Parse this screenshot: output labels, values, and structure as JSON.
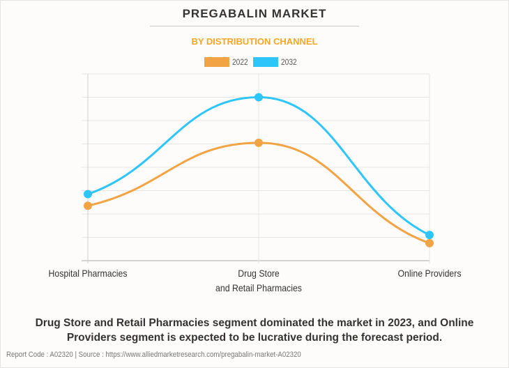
{
  "header": {
    "title": "PREGABALIN MARKET",
    "subtitle": "BY DISTRIBUTION CHANNEL"
  },
  "chart_data": {
    "type": "line",
    "title": "PREGABALIN MARKET",
    "subtitle": "BY DISTRIBUTION CHANNEL",
    "xlabel": "",
    "ylabel": "",
    "categories": [
      "Hospital Pharmacies",
      "Drug Store and Retail Pharmacies",
      "Online Providers"
    ],
    "category_lines": [
      [
        "Hospital Pharmacies"
      ],
      [
        "Drug Store",
        "and Retail Pharmacies"
      ],
      [
        "Online Providers"
      ]
    ],
    "series": [
      {
        "name": "2022",
        "color": "#f2a444",
        "values": [
          2.35,
          5.05,
          0.75
        ]
      },
      {
        "name": "2032",
        "color": "#2ec5fb",
        "values": [
          2.85,
          7.0,
          1.1
        ]
      }
    ],
    "ylim": [
      0,
      8
    ],
    "y_gridlines": 8,
    "y_tick_labels_shown": false,
    "grid": true,
    "smooth": true,
    "legend": "top-center"
  },
  "caption": "Drug Store and Retail Pharmacies segment dominated the market in 2023, and Online Providers segment is expected to be lucrative during the forecast period.",
  "footer": "Report Code : A02320  |  Source : https://www.alliedmarketresearch.com/pregabalin-market-A02320"
}
